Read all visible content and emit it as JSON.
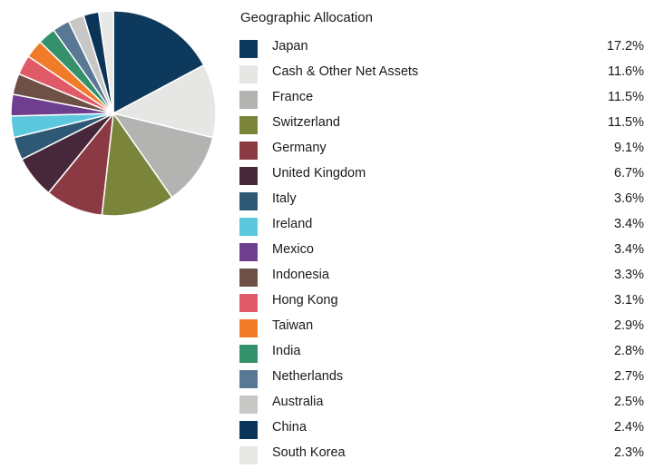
{
  "chart_data": {
    "type": "pie",
    "title": "Geographic Allocation",
    "categories": [
      "Japan",
      "Cash & Other Net Assets",
      "France",
      "Switzerland",
      "Germany",
      "United Kingdom",
      "Italy",
      "Ireland",
      "Mexico",
      "Indonesia",
      "Hong Kong",
      "Taiwan",
      "India",
      "Netherlands",
      "Australia",
      "China",
      "South Korea"
    ],
    "values": [
      17.2,
      11.6,
      11.5,
      11.5,
      9.1,
      6.7,
      3.6,
      3.4,
      3.4,
      3.3,
      3.1,
      2.9,
      2.8,
      2.7,
      2.5,
      2.4,
      2.3
    ],
    "value_labels": [
      "17.2%",
      "11.6%",
      "11.5%",
      "11.5%",
      "9.1%",
      "6.7%",
      "3.6%",
      "3.4%",
      "3.4%",
      "3.3%",
      "3.1%",
      "2.9%",
      "2.8%",
      "2.7%",
      "2.5%",
      "2.4%",
      "2.3%"
    ],
    "colors": [
      "#0d3a5c",
      "#e6e6e4",
      "#b3b3b1",
      "#7a843a",
      "#8b3a44",
      "#46283a",
      "#2e5873",
      "#5cc8de",
      "#6f3f8f",
      "#6e5046",
      "#e05a68",
      "#f07c2a",
      "#35916b",
      "#587896",
      "#c7c7c5",
      "#0a3558",
      "#e8e8e6"
    ],
    "legend_position": "right"
  }
}
